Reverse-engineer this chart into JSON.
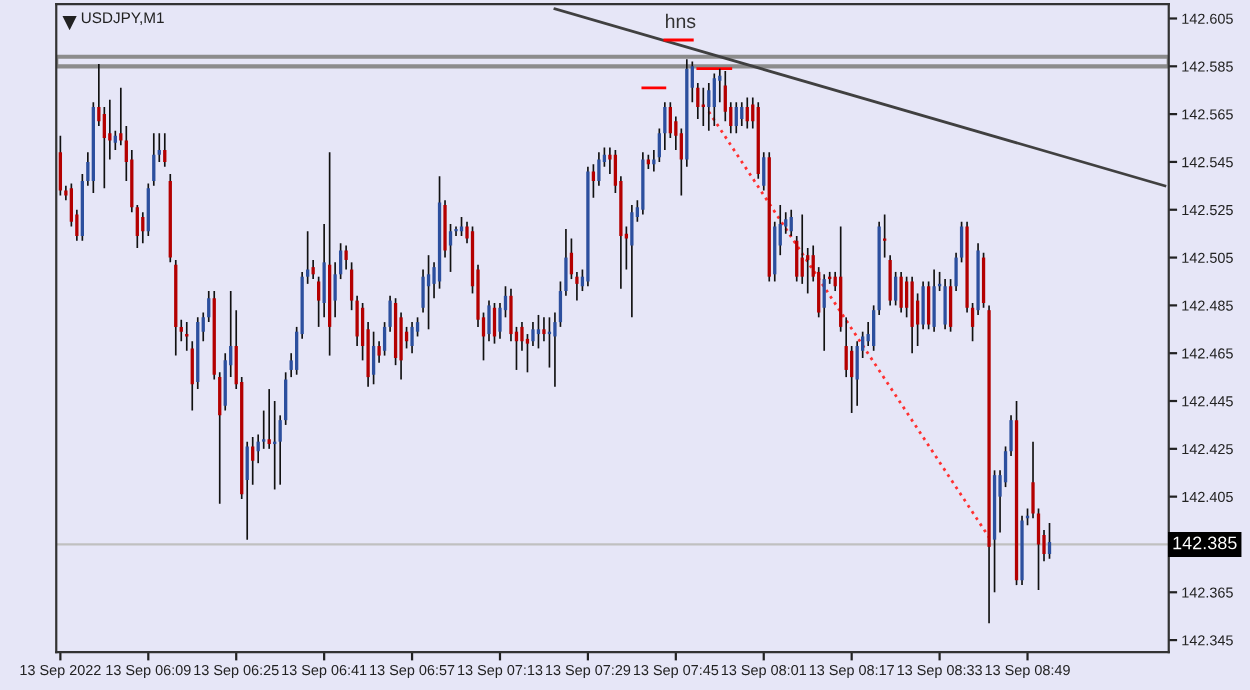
{
  "chart_data": {
    "type": "candlestick",
    "title": "USDJPY,M1",
    "categories": [
      "13 Sep 2022",
      null,
      null,
      null,
      null,
      null,
      null,
      null,
      null,
      null,
      null,
      null,
      null,
      null,
      null,
      null,
      "13 Sep 06:09",
      null,
      null,
      null,
      null,
      null,
      null,
      null,
      null,
      null,
      null,
      null,
      null,
      null,
      null,
      null,
      "13 Sep 06:25",
      null,
      null,
      null,
      null,
      null,
      null,
      null,
      null,
      null,
      null,
      null,
      null,
      null,
      null,
      null,
      "13 Sep 06:41",
      null,
      null,
      null,
      null,
      null,
      null,
      null,
      null,
      null,
      null,
      null,
      null,
      null,
      null,
      null,
      "13 Sep 06:57",
      null,
      null,
      null,
      null,
      null,
      null,
      null,
      null,
      null,
      null,
      null,
      null,
      null,
      null,
      null,
      "13 Sep 07:13",
      null,
      null,
      null,
      null,
      null,
      null,
      null,
      null,
      null,
      null,
      null,
      null,
      null,
      null,
      null,
      "13 Sep 07:29",
      null,
      null,
      null,
      null,
      null,
      null,
      null,
      null,
      null,
      null,
      null,
      null,
      null,
      null,
      null,
      "13 Sep 07:45",
      null,
      null,
      null,
      null,
      null,
      null,
      null,
      null,
      null,
      null,
      null,
      null,
      null,
      null,
      null,
      "13 Sep 08:01",
      null,
      null,
      null,
      null,
      null,
      null,
      null,
      null,
      null,
      null,
      null,
      null,
      null,
      null,
      null,
      "13 Sep 08:17",
      null,
      null,
      null,
      null,
      null,
      null,
      null,
      null,
      null,
      null,
      null,
      null,
      null,
      null,
      null,
      "13 Sep 08:33",
      null,
      null,
      null,
      null,
      null,
      null,
      null,
      null,
      null,
      null,
      null,
      null,
      null,
      null,
      null,
      "13 Sep 08:49",
      null,
      null,
      null,
      null,
      null,
      null,
      null,
      null,
      null,
      null,
      null,
      null,
      null,
      null,
      null,
      null,
      null,
      null,
      null,
      null,
      null,
      null,
      null,
      null,
      null
    ],
    "ohlc": [
      [
        142.549,
        142.556,
        142.531,
        142.533
      ],
      [
        142.533,
        142.535,
        142.529,
        142.531
      ],
      [
        142.534,
        142.536,
        142.518,
        142.52
      ],
      [
        142.523,
        142.525,
        142.512,
        142.514
      ],
      [
        142.514,
        142.54,
        142.512,
        142.537
      ],
      [
        142.537,
        142.549,
        142.535,
        142.545
      ],
      [
        142.537,
        142.57,
        142.532,
        142.568
      ],
      [
        142.568,
        142.586,
        142.56,
        142.562
      ],
      [
        142.565,
        142.568,
        142.534,
        142.555
      ],
      [
        142.557,
        142.571,
        142.546,
        142.554
      ],
      [
        142.553,
        142.558,
        142.55,
        142.556
      ],
      [
        142.557,
        142.576,
        142.552,
        142.554
      ],
      [
        142.554,
        142.56,
        142.537,
        142.545
      ],
      [
        142.546,
        142.55,
        142.524,
        142.526
      ],
      [
        142.526,
        142.527,
        142.509,
        142.514
      ],
      [
        142.522,
        142.524,
        142.511,
        142.516
      ],
      [
        142.516,
        142.536,
        142.514,
        142.534
      ],
      [
        142.537,
        142.557,
        142.535,
        142.548
      ],
      [
        142.548,
        142.557,
        142.545,
        142.55
      ],
      [
        142.55,
        142.557,
        142.543,
        142.545
      ],
      [
        142.537,
        142.54,
        142.503,
        142.505
      ],
      [
        142.502,
        142.504,
        142.464,
        142.476
      ],
      [
        142.476,
        142.479,
        142.47,
        142.474
      ],
      [
        142.473,
        142.478,
        142.466,
        142.472
      ],
      [
        142.467,
        142.47,
        142.441,
        142.452
      ],
      [
        142.453,
        142.48,
        142.45,
        142.478
      ],
      [
        142.474,
        142.482,
        142.47,
        142.48
      ],
      [
        142.48,
        142.491,
        142.478,
        142.488
      ],
      [
        142.488,
        142.491,
        142.454,
        142.456
      ],
      [
        142.455,
        142.457,
        142.402,
        142.439
      ],
      [
        142.443,
        142.465,
        142.441,
        142.462
      ],
      [
        142.46,
        142.491,
        142.455,
        142.468
      ],
      [
        142.468,
        142.483,
        142.45,
        142.452
      ],
      [
        142.453,
        142.455,
        142.404,
        142.406
      ],
      [
        142.412,
        142.428,
        142.387,
        142.426
      ],
      [
        142.426,
        142.43,
        142.41,
        142.42
      ],
      [
        142.424,
        142.431,
        142.419,
        142.428
      ],
      [
        142.428,
        142.441,
        142.425,
        142.429
      ],
      [
        142.429,
        142.45,
        142.425,
        142.427
      ],
      [
        142.427,
        142.445,
        142.408,
        142.428
      ],
      [
        142.428,
        142.439,
        142.41,
        142.437
      ],
      [
        142.437,
        142.457,
        142.435,
        142.454
      ],
      [
        142.458,
        142.465,
        142.455,
        142.462
      ],
      [
        142.458,
        142.476,
        142.456,
        142.474
      ],
      [
        142.473,
        142.499,
        142.471,
        142.497
      ],
      [
        142.497,
        142.516,
        142.494,
        142.5
      ],
      [
        142.501,
        142.504,
        142.496,
        142.498
      ],
      [
        142.495,
        142.497,
        142.476,
        142.487
      ],
      [
        142.486,
        142.519,
        142.48,
        142.503
      ],
      [
        142.502,
        142.549,
        142.464,
        142.476
      ],
      [
        142.487,
        142.503,
        142.48,
        142.498
      ],
      [
        142.498,
        142.511,
        142.496,
        142.508
      ],
      [
        142.508,
        142.51,
        142.5,
        142.504
      ],
      [
        142.5,
        142.503,
        142.483,
        142.487
      ],
      [
        142.487,
        142.489,
        142.468,
        142.472
      ],
      [
        142.484,
        142.486,
        142.462,
        142.468
      ],
      [
        142.475,
        142.478,
        142.451,
        142.455
      ],
      [
        142.456,
        142.474,
        142.452,
        142.468
      ],
      [
        142.468,
        142.47,
        142.461,
        142.464
      ],
      [
        142.466,
        142.478,
        142.464,
        142.476
      ],
      [
        142.476,
        142.489,
        142.474,
        142.487
      ],
      [
        142.486,
        142.488,
        142.46,
        142.463
      ],
      [
        142.48,
        142.482,
        142.454,
        142.462
      ],
      [
        142.474,
        142.476,
        142.467,
        142.47
      ],
      [
        142.468,
        142.478,
        142.465,
        142.476
      ],
      [
        142.474,
        142.48,
        142.472,
        142.478
      ],
      [
        142.484,
        142.5,
        142.482,
        142.497
      ],
      [
        142.493,
        142.506,
        142.475,
        142.498
      ],
      [
        142.494,
        142.503,
        142.488,
        142.501
      ],
      [
        142.495,
        142.539,
        142.492,
        142.528
      ],
      [
        142.527,
        142.529,
        142.505,
        142.508
      ],
      [
        142.51,
        142.519,
        142.499,
        142.516
      ],
      [
        142.516,
        142.518,
        142.514,
        142.517
      ],
      [
        142.516,
        142.522,
        142.514,
        142.518
      ],
      [
        142.518,
        142.52,
        142.511,
        142.513
      ],
      [
        142.516,
        142.518,
        142.49,
        142.493
      ],
      [
        142.5,
        142.502,
        142.476,
        142.479
      ],
      [
        142.48,
        142.482,
        142.462,
        142.472
      ],
      [
        142.473,
        142.487,
        142.47,
        142.485
      ],
      [
        142.484,
        142.486,
        142.469,
        142.472
      ],
      [
        142.474,
        142.486,
        142.471,
        142.484
      ],
      [
        142.483,
        142.493,
        142.48,
        142.489
      ],
      [
        142.489,
        142.492,
        142.47,
        142.473
      ],
      [
        142.474,
        142.476,
        142.458,
        142.47
      ],
      [
        142.476,
        142.478,
        142.466,
        142.47
      ],
      [
        142.471,
        142.473,
        142.457,
        142.469
      ],
      [
        142.47,
        142.478,
        142.468,
        142.475
      ],
      [
        142.473,
        142.481,
        142.467,
        142.475
      ],
      [
        142.475,
        142.48,
        142.47,
        142.473
      ],
      [
        142.473,
        142.48,
        142.459,
        142.474
      ],
      [
        142.472,
        142.482,
        142.451,
        142.478
      ],
      [
        142.478,
        142.495,
        142.476,
        142.491
      ],
      [
        142.491,
        142.517,
        142.489,
        142.505
      ],
      [
        142.507,
        142.513,
        142.496,
        142.498
      ],
      [
        142.497,
        142.499,
        142.487,
        142.494
      ],
      [
        142.493,
        142.5,
        142.491,
        142.497
      ],
      [
        142.495,
        142.543,
        142.493,
        142.541
      ],
      [
        142.541,
        142.544,
        142.53,
        142.537
      ],
      [
        142.537,
        142.549,
        142.535,
        142.546
      ],
      [
        142.545,
        142.551,
        142.543,
        142.548
      ],
      [
        142.548,
        142.551,
        142.54,
        142.546
      ],
      [
        142.548,
        142.55,
        142.532,
        142.535
      ],
      [
        142.537,
        142.539,
        142.492,
        142.514
      ],
      [
        142.515,
        142.518,
        142.5,
        142.513
      ],
      [
        142.51,
        142.527,
        142.48,
        142.524
      ],
      [
        142.522,
        142.529,
        142.52,
        142.526
      ],
      [
        142.525,
        142.549,
        142.523,
        142.546
      ],
      [
        142.546,
        142.548,
        142.542,
        142.544
      ],
      [
        142.544,
        142.55,
        142.541,
        142.546
      ],
      [
        142.547,
        142.559,
        142.545,
        142.557
      ],
      [
        142.557,
        142.57,
        142.55,
        142.568
      ],
      [
        142.568,
        142.57,
        142.555,
        142.557
      ],
      [
        142.562,
        142.564,
        142.55,
        142.556
      ],
      [
        142.557,
        142.559,
        142.531,
        142.546
      ],
      [
        142.546,
        142.588,
        142.543,
        142.584
      ],
      [
        142.576,
        142.587,
        142.57,
        142.585
      ],
      [
        142.576,
        142.578,
        142.563,
        142.568
      ],
      [
        142.569,
        142.576,
        142.56,
        142.568
      ],
      [
        142.568,
        142.578,
        142.558,
        142.575
      ],
      [
        142.568,
        142.582,
        142.56,
        142.58
      ],
      [
        142.579,
        142.584,
        142.57,
        142.581
      ],
      [
        142.577,
        142.583,
        142.562,
        142.566
      ],
      [
        142.568,
        142.57,
        142.557,
        142.56
      ],
      [
        142.56,
        142.57,
        142.557,
        142.568
      ],
      [
        142.563,
        142.57,
        142.56,
        142.568
      ],
      [
        142.568,
        142.572,
        142.559,
        142.562
      ],
      [
        142.569,
        142.572,
        142.559,
        142.562
      ],
      [
        142.568,
        142.57,
        142.538,
        142.54
      ],
      [
        142.535,
        142.549,
        142.533,
        142.547
      ],
      [
        142.547,
        142.549,
        142.495,
        142.497
      ],
      [
        142.498,
        142.52,
        142.495,
        142.518
      ],
      [
        142.51,
        142.527,
        142.506,
        142.519
      ],
      [
        142.518,
        142.524,
        142.515,
        142.521
      ],
      [
        142.516,
        142.525,
        142.514,
        142.522
      ],
      [
        142.512,
        142.514,
        142.495,
        142.497
      ],
      [
        142.505,
        142.523,
        142.494,
        142.497
      ],
      [
        142.506,
        142.509,
        142.49,
        142.504
      ],
      [
        142.506,
        142.51,
        142.495,
        142.497
      ],
      [
        142.499,
        142.501,
        142.48,
        142.482
      ],
      [
        142.484,
        142.498,
        142.466,
        142.496
      ],
      [
        142.497,
        142.499,
        142.494,
        142.496
      ],
      [
        142.497,
        142.499,
        142.491,
        142.493
      ],
      [
        142.497,
        142.518,
        142.474,
        142.476
      ],
      [
        142.468,
        142.48,
        142.455,
        142.458
      ],
      [
        142.466,
        142.468,
        142.44,
        142.455
      ],
      [
        142.454,
        142.47,
        142.443,
        142.468
      ],
      [
        142.466,
        142.474,
        142.463,
        142.472
      ],
      [
        142.47,
        142.478,
        142.468,
        142.473
      ],
      [
        142.468,
        142.485,
        142.466,
        142.483
      ],
      [
        142.483,
        142.52,
        142.481,
        142.518
      ],
      [
        142.513,
        142.523,
        142.505,
        142.512
      ],
      [
        142.504,
        142.506,
        142.485,
        142.487
      ],
      [
        142.487,
        142.499,
        142.485,
        142.497
      ],
      [
        142.497,
        142.499,
        142.482,
        142.484
      ],
      [
        142.495,
        142.497,
        142.48,
        142.484
      ],
      [
        142.495,
        142.497,
        142.465,
        142.476
      ],
      [
        142.487,
        142.49,
        142.468,
        142.477
      ],
      [
        142.477,
        142.495,
        142.475,
        142.493
      ],
      [
        142.493,
        142.495,
        142.475,
        142.477
      ],
      [
        142.476,
        142.5,
        142.474,
        142.493
      ],
      [
        142.493,
        142.499,
        142.491,
        142.494
      ],
      [
        142.477,
        142.496,
        142.475,
        142.493
      ],
      [
        142.493,
        142.496,
        142.474,
        142.476
      ],
      [
        142.493,
        142.507,
        142.491,
        142.505
      ],
      [
        142.505,
        142.52,
        142.503,
        142.518
      ],
      [
        142.518,
        142.52,
        142.482,
        142.484
      ],
      [
        142.484,
        142.486,
        142.47,
        142.476
      ],
      [
        142.483,
        142.511,
        142.481,
        142.508
      ],
      [
        142.505,
        142.507,
        142.484,
        142.486
      ],
      [
        142.483,
        142.485,
        142.352,
        142.384
      ],
      [
        142.387,
        142.416,
        142.365,
        142.414
      ],
      [
        142.405,
        142.416,
        142.39,
        142.414
      ],
      [
        142.411,
        142.426,
        142.409,
        142.424
      ],
      [
        142.424,
        142.439,
        142.422,
        142.437
      ],
      [
        142.437,
        142.445,
        142.368,
        142.37
      ],
      [
        142.37,
        142.397,
        142.368,
        142.395
      ],
      [
        142.396,
        142.4,
        142.393,
        142.397
      ],
      [
        142.411,
        142.428,
        142.396,
        142.398
      ],
      [
        142.398,
        142.4,
        142.366,
        142.385
      ],
      [
        142.389,
        142.391,
        142.378,
        142.381
      ],
      [
        142.381,
        142.394,
        142.379,
        142.386
      ],
      null,
      null,
      null,
      null,
      null,
      null,
      null,
      null,
      null,
      null,
      null,
      null,
      null,
      null,
      null,
      null,
      null,
      null,
      null,
      null,
      null
    ],
    "series": [
      {
        "type": "line",
        "color": "#404040",
        "line_style": "solid",
        "values": [
          null,
          null,
          null,
          null,
          null,
          null,
          null,
          null,
          null,
          null,
          null,
          null,
          null,
          null,
          null,
          null,
          null,
          null,
          null,
          null,
          null,
          null,
          null,
          null,
          null,
          null,
          null,
          null,
          null,
          null,
          null,
          null,
          null,
          null,
          null,
          null,
          null,
          null,
          null,
          null,
          null,
          null,
          null,
          null,
          null,
          null,
          null,
          null,
          null,
          null,
          null,
          null,
          null,
          null,
          null,
          null,
          null,
          null,
          null,
          null,
          null,
          null,
          null,
          null,
          null,
          null,
          null,
          null,
          null,
          null,
          null,
          null,
          null,
          null,
          null,
          null,
          null,
          null,
          null,
          null,
          null,
          null,
          null,
          null,
          null,
          null,
          null,
          null,
          null,
          null,
          142.609,
          null,
          null,
          null,
          null,
          null,
          null,
          null,
          null,
          null,
          null,
          null,
          null,
          null,
          null,
          null,
          null,
          null,
          null,
          null,
          null,
          null,
          null,
          null,
          null,
          null,
          null,
          null,
          null,
          null,
          null,
          null,
          null,
          null,
          null,
          null,
          null,
          null,
          null,
          null,
          null,
          null,
          null,
          null,
          null,
          null,
          null,
          null,
          null,
          null,
          null,
          null,
          null,
          null,
          null,
          null,
          null,
          null,
          null,
          null,
          null,
          null,
          null,
          null,
          null,
          null,
          null,
          null,
          null,
          null,
          null,
          null,
          null,
          null,
          null,
          null,
          null,
          null,
          null,
          null,
          null,
          null,
          null,
          null,
          null,
          null,
          null,
          null,
          null,
          null,
          null,
          null,
          null,
          null,
          null,
          null,
          null,
          null,
          null,
          null,
          null,
          null,
          null,
          null,
          null,
          null,
          null,
          null,
          null,
          null,
          null,
          142.535
        ]
      },
      {
        "type": "line",
        "color": "#ff3030",
        "line_style": "dotted",
        "values": [
          null,
          null,
          null,
          null,
          null,
          null,
          null,
          null,
          null,
          null,
          null,
          null,
          null,
          null,
          null,
          null,
          null,
          null,
          null,
          null,
          null,
          null,
          null,
          null,
          null,
          null,
          null,
          null,
          null,
          null,
          null,
          null,
          null,
          null,
          null,
          null,
          null,
          null,
          null,
          null,
          null,
          null,
          null,
          null,
          null,
          null,
          null,
          null,
          null,
          null,
          null,
          null,
          null,
          null,
          null,
          null,
          null,
          null,
          null,
          null,
          null,
          null,
          null,
          null,
          null,
          null,
          null,
          null,
          null,
          null,
          null,
          null,
          null,
          null,
          null,
          null,
          null,
          null,
          null,
          null,
          null,
          null,
          null,
          null,
          null,
          null,
          null,
          null,
          null,
          null,
          null,
          null,
          null,
          null,
          null,
          null,
          null,
          null,
          null,
          null,
          null,
          null,
          null,
          null,
          null,
          null,
          null,
          null,
          null,
          null,
          null,
          null,
          null,
          null,
          null,
          null,
          null,
          null,
          142.566,
          null,
          null,
          null,
          null,
          null,
          null,
          null,
          null,
          null,
          null,
          null,
          null,
          null,
          null,
          null,
          null,
          null,
          null,
          null,
          null,
          null,
          null,
          null,
          null,
          null,
          null,
          null,
          null,
          null,
          null,
          null,
          null,
          null,
          null,
          null,
          null,
          null,
          null,
          null,
          null,
          null,
          null,
          null,
          null,
          null,
          null,
          null,
          null,
          null,
          null,
          142.388,
          null,
          null,
          null,
          null,
          null,
          null,
          null,
          null,
          null,
          null,
          null,
          null,
          null,
          null,
          null,
          null,
          null,
          null,
          null,
          null,
          null,
          null,
          null,
          null,
          null,
          null,
          null,
          null,
          null,
          null,
          null,
          null
        ]
      },
      {
        "type": "line",
        "color": "#ff0000",
        "line_style": "solid",
        "values": [
          null,
          null,
          null,
          null,
          null,
          null,
          null,
          null,
          null,
          null,
          null,
          null,
          null,
          null,
          null,
          null,
          null,
          null,
          null,
          null,
          null,
          null,
          null,
          null,
          null,
          null,
          null,
          null,
          null,
          null,
          null,
          null,
          null,
          null,
          null,
          null,
          null,
          null,
          null,
          null,
          null,
          null,
          null,
          null,
          null,
          null,
          null,
          null,
          null,
          null,
          null,
          null,
          null,
          null,
          null,
          null,
          null,
          null,
          null,
          null,
          null,
          null,
          null,
          null,
          null,
          null,
          null,
          null,
          null,
          null,
          null,
          null,
          null,
          null,
          null,
          null,
          null,
          null,
          null,
          null,
          null,
          null,
          null,
          null,
          null,
          null,
          null,
          null,
          null,
          null,
          null,
          null,
          null,
          null,
          null,
          null,
          null,
          null,
          null,
          null,
          null,
          null,
          null,
          null,
          null,
          null,
          null,
          null,
          null,
          null,
          142.596,
          null,
          null,
          null,
          null,
          142.596,
          null,
          null,
          null,
          null,
          null,
          null,
          null,
          null,
          null,
          null,
          null,
          null,
          null,
          null,
          null,
          null,
          null,
          null,
          null,
          null,
          null,
          null,
          null,
          null,
          null,
          null,
          null,
          null,
          null,
          null,
          null,
          null,
          null,
          null,
          null,
          null,
          null,
          null,
          null,
          null,
          null,
          null,
          null,
          null,
          null,
          null,
          null,
          null,
          null,
          null,
          null,
          null,
          null,
          null,
          null,
          null,
          null,
          null,
          null,
          null,
          null,
          null,
          null,
          null,
          null,
          null,
          null,
          null,
          null,
          null,
          null,
          null,
          null,
          null,
          null,
          null,
          null,
          null,
          null,
          null,
          null,
          null,
          null,
          null,
          null,
          null
        ]
      },
      {
        "type": "line",
        "color": "#ff0000",
        "line_style": "solid",
        "values": [
          null,
          null,
          null,
          null,
          null,
          null,
          null,
          null,
          null,
          null,
          null,
          null,
          null,
          null,
          null,
          null,
          null,
          null,
          null,
          null,
          null,
          null,
          null,
          null,
          null,
          null,
          null,
          null,
          null,
          null,
          null,
          null,
          null,
          null,
          null,
          null,
          null,
          null,
          null,
          null,
          null,
          null,
          null,
          null,
          null,
          null,
          null,
          null,
          null,
          null,
          null,
          null,
          null,
          null,
          null,
          null,
          null,
          null,
          null,
          null,
          null,
          null,
          null,
          null,
          null,
          null,
          null,
          null,
          null,
          null,
          null,
          null,
          null,
          null,
          null,
          null,
          null,
          null,
          null,
          null,
          null,
          null,
          null,
          null,
          null,
          null,
          null,
          null,
          null,
          null,
          null,
          null,
          null,
          null,
          null,
          null,
          null,
          null,
          null,
          null,
          null,
          null,
          null,
          null,
          null,
          null,
          142.576,
          null,
          null,
          null,
          142.576,
          null,
          null,
          null,
          null,
          null,
          null,
          null,
          null,
          null,
          null,
          null,
          null,
          null,
          null,
          null,
          null,
          null,
          null,
          null,
          null,
          null,
          null,
          null,
          null,
          null,
          null,
          null,
          null,
          null,
          null,
          null,
          null,
          null,
          null,
          null,
          null,
          null,
          null,
          null,
          null,
          null,
          null,
          null,
          null,
          null,
          null,
          null,
          null,
          null,
          null,
          null,
          null,
          null,
          null,
          null,
          null,
          null,
          null,
          null,
          null,
          null,
          null,
          null,
          null,
          null,
          null,
          null,
          null,
          null,
          null,
          null,
          null,
          null,
          null,
          null,
          null,
          null,
          null,
          null,
          null,
          null,
          null,
          null,
          null,
          null,
          null,
          null,
          null,
          null,
          null,
          null
        ]
      },
      {
        "type": "line",
        "color": "#ff0000",
        "line_style": "solid",
        "values": [
          null,
          null,
          null,
          null,
          null,
          null,
          null,
          null,
          null,
          null,
          null,
          null,
          null,
          null,
          null,
          null,
          null,
          null,
          null,
          null,
          null,
          null,
          null,
          null,
          null,
          null,
          null,
          null,
          null,
          null,
          null,
          null,
          null,
          null,
          null,
          null,
          null,
          null,
          null,
          null,
          null,
          null,
          null,
          null,
          null,
          null,
          null,
          null,
          null,
          null,
          null,
          null,
          null,
          null,
          null,
          null,
          null,
          null,
          null,
          null,
          null,
          null,
          null,
          null,
          null,
          null,
          null,
          null,
          null,
          null,
          null,
          null,
          null,
          null,
          null,
          null,
          null,
          null,
          null,
          null,
          null,
          null,
          null,
          null,
          null,
          null,
          null,
          null,
          null,
          null,
          null,
          null,
          null,
          null,
          null,
          null,
          null,
          null,
          null,
          null,
          null,
          null,
          null,
          null,
          null,
          null,
          null,
          null,
          null,
          null,
          null,
          null,
          null,
          null,
          null,
          null,
          142.584,
          null,
          null,
          null,
          null,
          null,
          142.584,
          null,
          null,
          null,
          null,
          null,
          null,
          null,
          null,
          null,
          null,
          null,
          null,
          null,
          null,
          null,
          null,
          null,
          null,
          null,
          null,
          null,
          null,
          null,
          null,
          null,
          null,
          null,
          null,
          null,
          null,
          null,
          null,
          null,
          null,
          null,
          null,
          null,
          null,
          null,
          null,
          null,
          null,
          null,
          null,
          null,
          null,
          null,
          null,
          null,
          null,
          null,
          null,
          null,
          null,
          null,
          null,
          null,
          null,
          null,
          null,
          null,
          null,
          null,
          null,
          null,
          null,
          null,
          null,
          null,
          null,
          null,
          null,
          null,
          null,
          null,
          null,
          null,
          null,
          null
        ]
      }
    ],
    "bands": [
      {
        "axis": "y",
        "from": 142.585,
        "to": 142.589,
        "color": "#8c8c8c"
      }
    ],
    "ref_lines": [
      {
        "axis": "y",
        "value": 142.385,
        "label": "142.385",
        "color": "#c0c0c0"
      }
    ],
    "annotations": [
      "hns"
    ],
    "ylim": [
      142.34,
      142.611
    ],
    "yticks": [
      {
        "value": 142.605,
        "label": "142.605"
      },
      {
        "value": 142.585,
        "label": "142.585"
      },
      {
        "value": 142.565,
        "label": "142.565"
      },
      {
        "value": 142.545,
        "label": "142.545"
      },
      {
        "value": 142.525,
        "label": "142.525"
      },
      {
        "value": 142.505,
        "label": "142.505"
      },
      {
        "value": 142.485,
        "label": "142.485"
      },
      {
        "value": 142.465,
        "label": "142.465"
      },
      {
        "value": 142.445,
        "label": "142.445"
      },
      {
        "value": 142.425,
        "label": "142.425"
      },
      {
        "value": 142.405,
        "label": "142.405"
      },
      {
        "value": 142.365,
        "label": "142.365"
      },
      {
        "value": 142.345,
        "label": "142.345"
      }
    ],
    "grid": false,
    "legend": false
  }
}
